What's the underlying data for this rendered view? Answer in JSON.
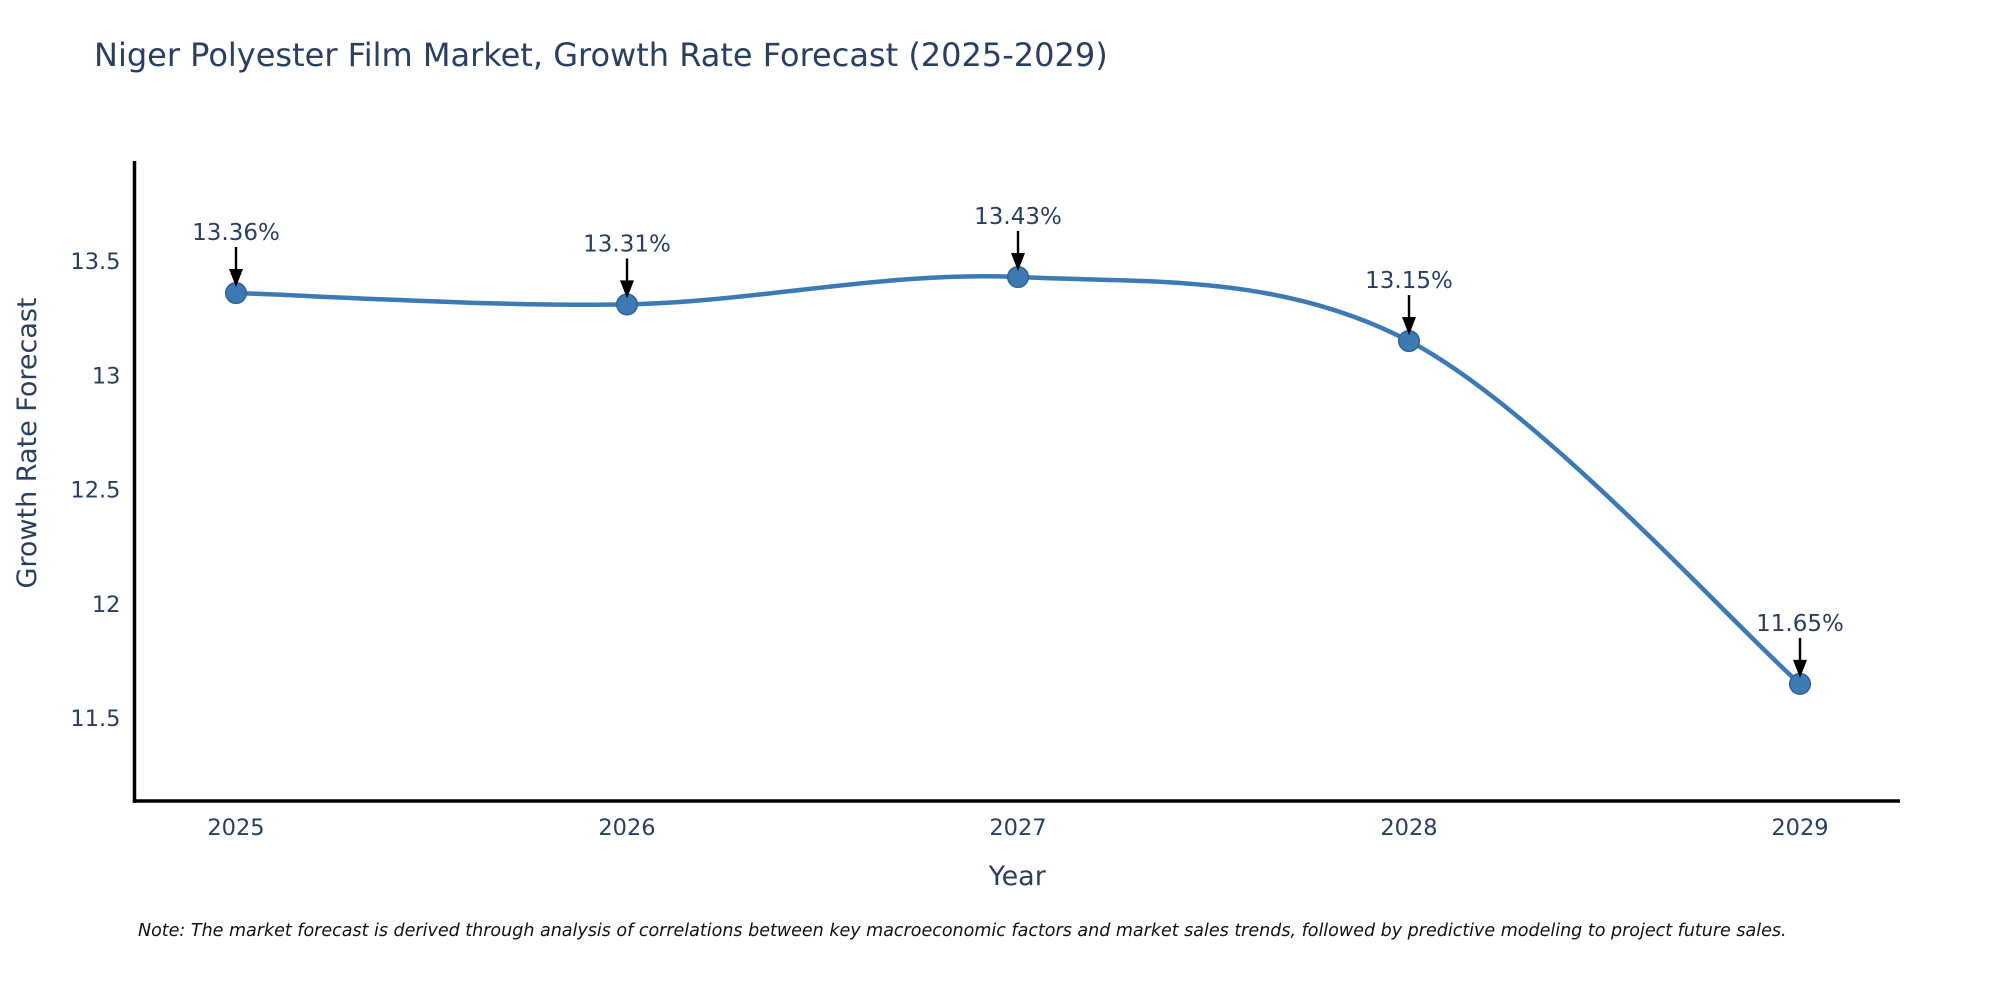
{
  "title": "Niger Polyester Film Market, Growth Rate Forecast (2025-2029)",
  "note": "Note: The market forecast is derived through analysis of correlations between key macroeconomic factors and market sales trends, followed by predictive modeling to project future sales.",
  "chart_data": {
    "type": "line",
    "title": "Niger Polyester Film Market, Growth Rate Forecast (2025-2029)",
    "xlabel": "Year",
    "ylabel": "Growth Rate Forecast",
    "x": [
      2025,
      2026,
      2027,
      2028,
      2029
    ],
    "values": [
      13.36,
      13.31,
      13.43,
      13.15,
      11.65
    ],
    "point_labels": [
      "13.36%",
      "13.31%",
      "13.43%",
      "13.15%",
      "11.65%"
    ],
    "yticks": [
      13.5,
      13,
      12.5,
      12,
      11.5
    ],
    "ylim": [
      11.14,
      13.94
    ],
    "line_shape": "spline",
    "grid": false,
    "legend_position": "none",
    "colors": {
      "line": "#3d79b3",
      "marker_fill": "#3d79b3",
      "marker_edge": "#2f6496",
      "axis_line": "#000000",
      "text": "#2a3f5f",
      "annotation_text": "#2a3f5f",
      "annotation_arrow": "#000000",
      "background": "#ffffff"
    }
  }
}
